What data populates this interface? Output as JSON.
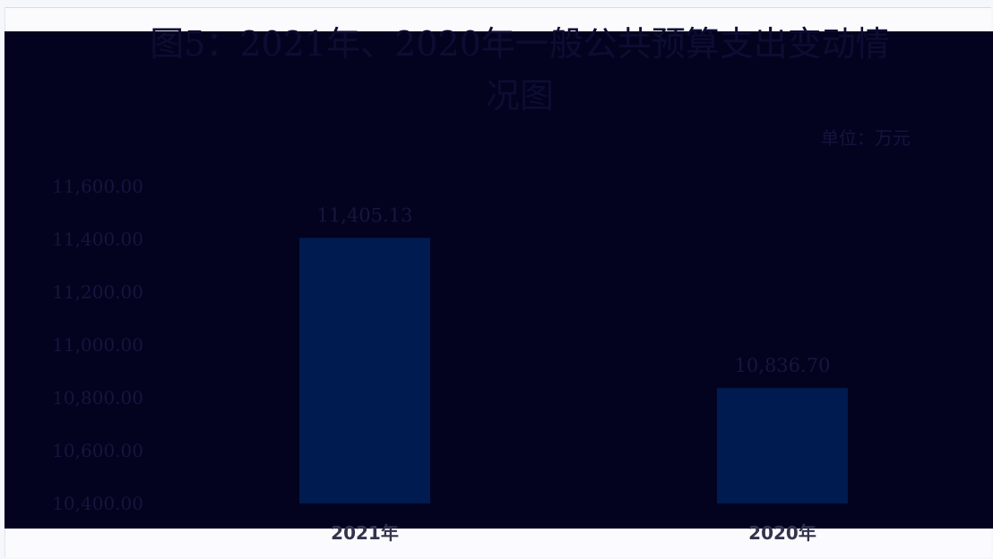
{
  "chart_data": {
    "type": "bar",
    "title": "图5：2021年、2020年一般公共预算支出变动情况图",
    "unit": "单位：万元",
    "categories": [
      "2021年",
      "2020年"
    ],
    "values": [
      11405.13,
      10836.7
    ],
    "ylim": [
      10400,
      11600
    ],
    "yticks": [
      10400,
      10600,
      10800,
      11000,
      11200,
      11400,
      11600
    ],
    "grid": false,
    "legend": "none",
    "colors": {
      "bar": "#001b4f",
      "background": "#03031f"
    }
  }
}
